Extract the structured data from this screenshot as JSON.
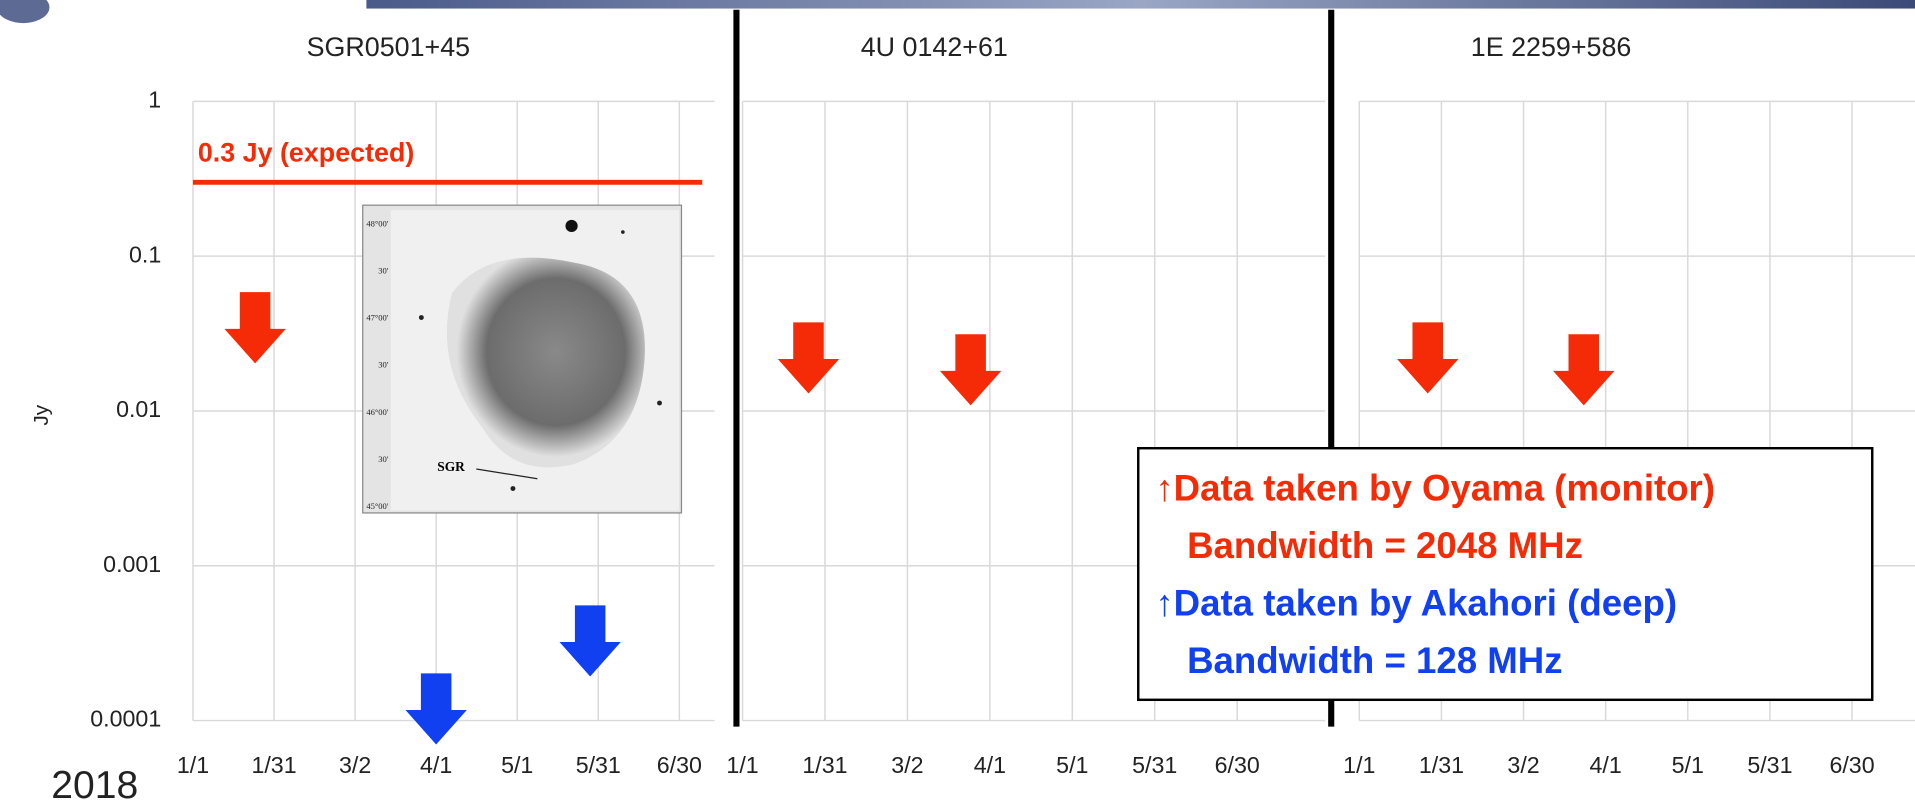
{
  "chart_data": [
    {
      "type": "arrow-limits",
      "title": "SGR0501+45",
      "ylabel": "Jy",
      "log_y": true,
      "grid": true,
      "show_ytick_labels": true,
      "ylim": [
        0.0001,
        1
      ],
      "yticks": [
        1,
        0.1,
        0.01,
        0.001,
        0.0001
      ],
      "xlim": [
        0,
        193
      ],
      "xticks": [
        {
          "value": 0,
          "label": "1/1"
        },
        {
          "value": 30,
          "label": "1/31"
        },
        {
          "value": 60,
          "label": "3/2"
        },
        {
          "value": 90,
          "label": "4/1"
        },
        {
          "value": 120,
          "label": "5/1"
        },
        {
          "value": 150,
          "label": "5/31"
        },
        {
          "value": 180,
          "label": "6/30"
        }
      ],
      "hline": {
        "value": 0.3,
        "label": "0.3 Jy (expected)",
        "color": "#f52a06"
      },
      "series": [
        {
          "color": "#f52a06",
          "x": [
            23
          ],
          "values": [
            0.058
          ]
        },
        {
          "color": "#1040f0",
          "x": [
            90,
            147
          ],
          "values": [
            0.0002,
            0.00055
          ]
        }
      ]
    },
    {
      "type": "arrow-limits",
      "title": "4U 0142+61",
      "log_y": true,
      "grid": true,
      "show_ytick_labels": false,
      "ylim": [
        0.0001,
        1
      ],
      "yticks": [
        1,
        0.1,
        0.01,
        0.001,
        0.0001
      ],
      "xlim": [
        0,
        212
      ],
      "xticks": [
        {
          "value": 0,
          "label": "1/1"
        },
        {
          "value": 30,
          "label": "1/31"
        },
        {
          "value": 60,
          "label": "3/2"
        },
        {
          "value": 90,
          "label": "4/1"
        },
        {
          "value": 120,
          "label": "5/1"
        },
        {
          "value": 150,
          "label": "5/31"
        },
        {
          "value": 180,
          "label": "6/30"
        }
      ],
      "series": [
        {
          "color": "#f52a06",
          "x": [
            24,
            83
          ],
          "values": [
            0.037,
            0.031
          ]
        }
      ]
    },
    {
      "type": "arrow-limits",
      "title": "1E 2259+586",
      "log_y": true,
      "grid": true,
      "show_ytick_labels": false,
      "ylim": [
        0.0001,
        1
      ],
      "yticks": [
        1,
        0.1,
        0.01,
        0.001,
        0.0001
      ],
      "xlim": [
        0,
        203
      ],
      "xticks": [
        {
          "value": 0,
          "label": "1/1"
        },
        {
          "value": 30,
          "label": "1/31"
        },
        {
          "value": 60,
          "label": "3/2"
        },
        {
          "value": 90,
          "label": "4/1"
        },
        {
          "value": 120,
          "label": "5/1"
        },
        {
          "value": 150,
          "label": "5/31"
        },
        {
          "value": 180,
          "label": "6/30"
        }
      ],
      "series": [
        {
          "color": "#f52a06",
          "x": [
            25,
            82
          ],
          "values": [
            0.037,
            0.031
          ]
        }
      ]
    }
  ],
  "legend_box": {
    "lines": [
      {
        "text": "↑Data taken by Oyama (monitor)",
        "color": "#f52a06"
      },
      {
        "text": "Bandwidth = 2048 MHz",
        "color": "#f52a06"
      },
      {
        "text": "↑Data taken by Akahori (deep)",
        "color": "#1040f0"
      },
      {
        "text": "Bandwidth = 128 MHz",
        "color": "#1040f0"
      }
    ]
  },
  "inset": {
    "labels": [
      "48°00'",
      "30'",
      "47°00'",
      "30'",
      "46°00'",
      "30'",
      "45°00'"
    ],
    "marker": "SGR"
  },
  "year_label": "2018"
}
